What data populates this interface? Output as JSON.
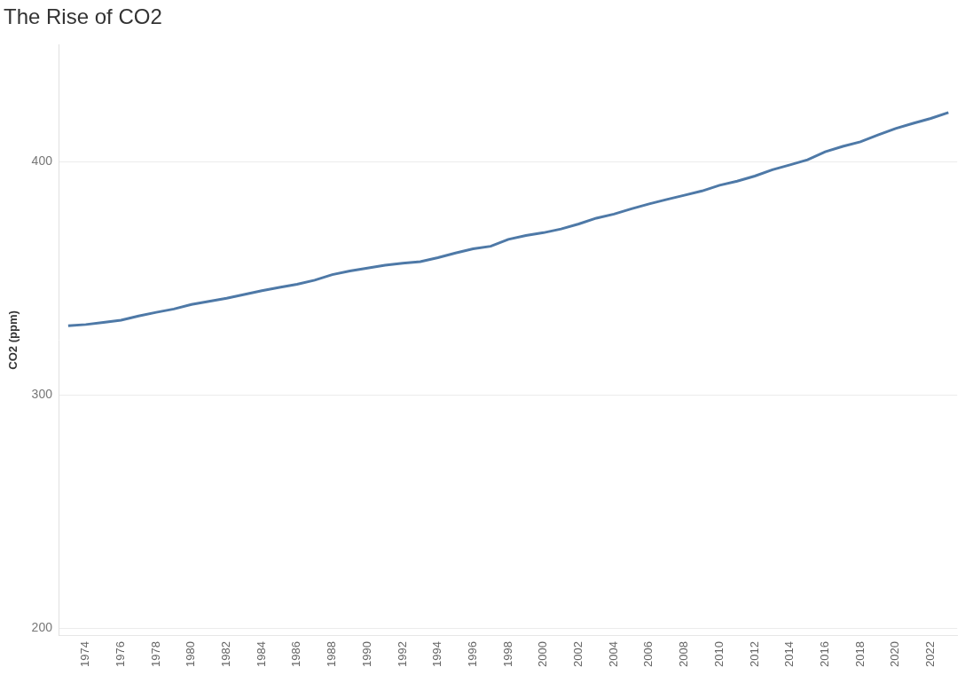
{
  "chart_data": {
    "type": "line",
    "title": "The Rise of CO2",
    "y_label": "CO2 (ppm)",
    "categories": [
      null,
      "1974",
      null,
      "1976",
      null,
      "1978",
      null,
      "1980",
      null,
      "1982",
      null,
      "1984",
      null,
      "1986",
      null,
      "1988",
      null,
      "1990",
      null,
      "1992",
      null,
      "1994",
      null,
      "1996",
      null,
      "1998",
      null,
      "2000",
      null,
      "2002",
      null,
      "2004",
      null,
      "2006",
      null,
      "2008",
      null,
      "2010",
      null,
      "2012",
      null,
      "2014",
      null,
      "2016",
      null,
      "2018",
      null,
      "2020",
      null,
      "2022",
      null
    ],
    "values": [
      329.68,
      330.18,
      331.11,
      332.04,
      333.83,
      335.4,
      336.84,
      338.75,
      340.11,
      341.45,
      343.05,
      344.65,
      346.12,
      347.42,
      349.19,
      351.57,
      353.12,
      354.39,
      355.61,
      356.45,
      357.1,
      358.83,
      360.82,
      362.61,
      363.73,
      366.7,
      368.38,
      369.55,
      371.14,
      373.28,
      375.8,
      377.52,
      379.8,
      381.9,
      383.79,
      385.6,
      387.43,
      389.9,
      391.65,
      393.85,
      396.52,
      398.65,
      400.83,
      404.24,
      406.55,
      408.52,
      411.44,
      414.24,
      416.45,
      418.56,
      421.08
    ],
    "color": "#4e79a7",
    "ylim": [
      197,
      450
    ],
    "yticks": [
      200,
      300,
      400
    ],
    "grid": true
  }
}
